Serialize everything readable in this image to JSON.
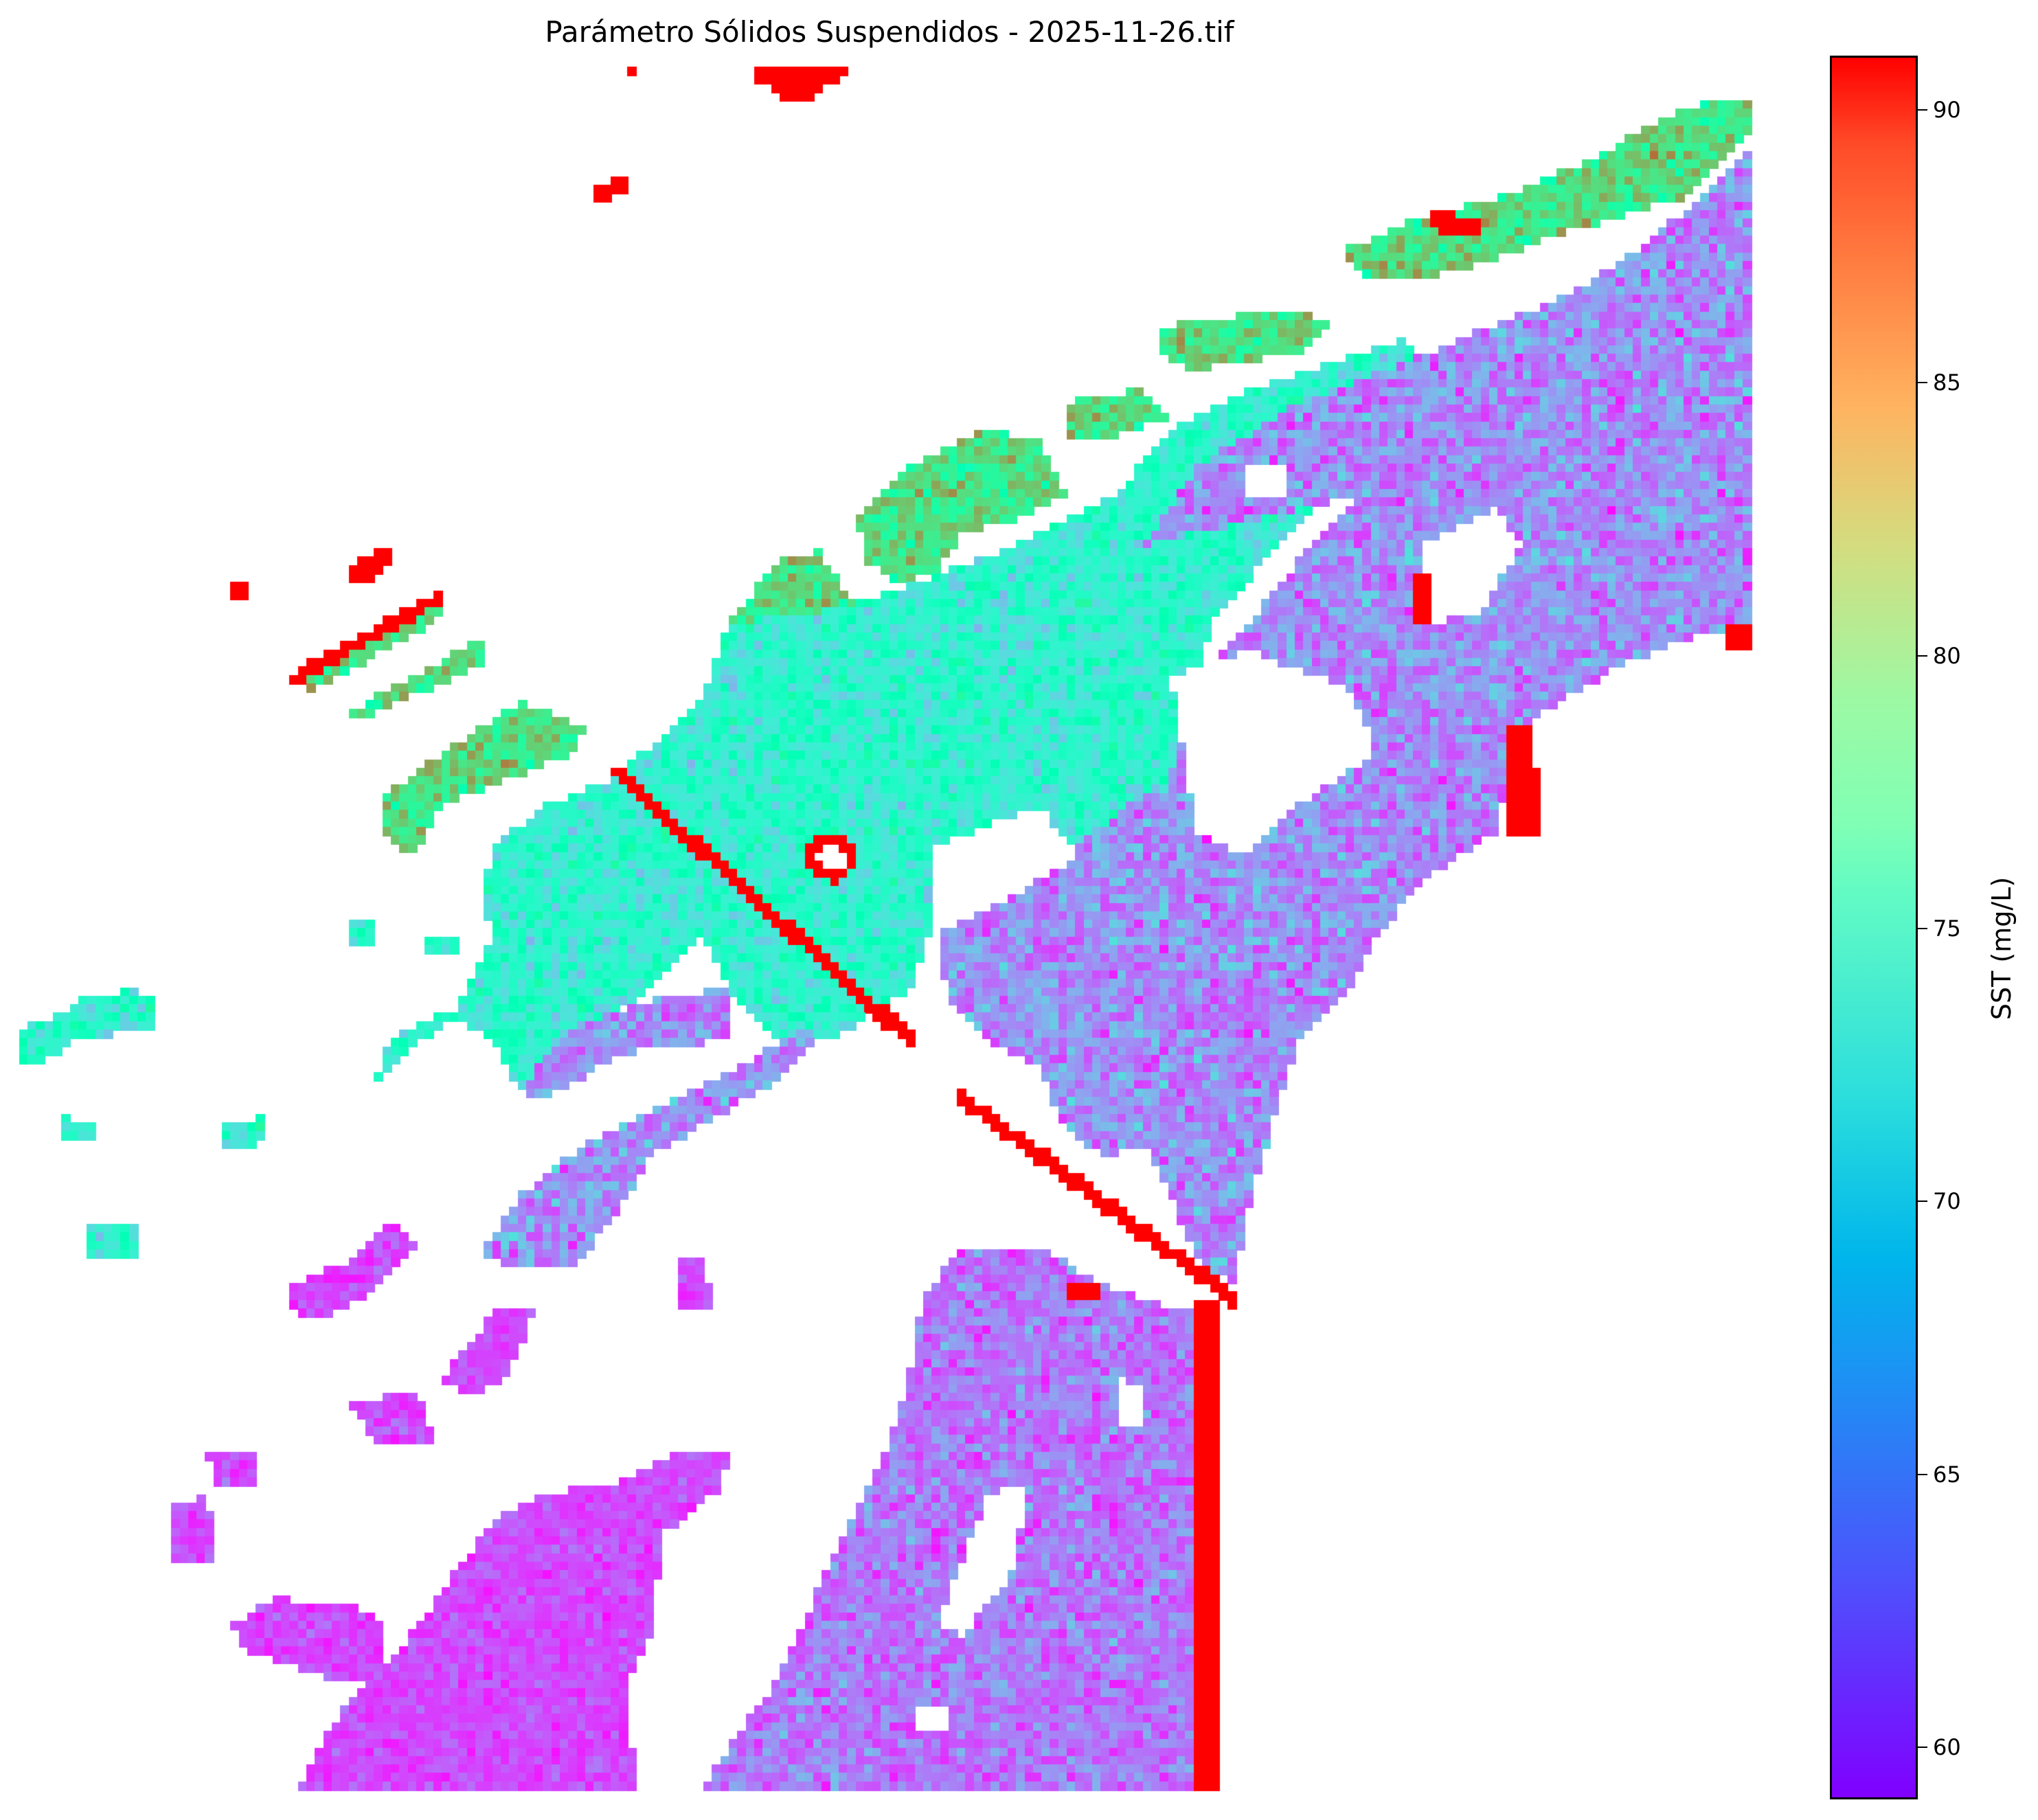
{
  "chart_data": {
    "type": "heatmap",
    "title": "Parámetro Sólidos Suspendidos - 2025-11-26.tif",
    "colorbar": {
      "label": "SST (mg/L)",
      "colormap": "rainbow",
      "range": [
        59.05,
        90.95
      ],
      "ticks": [
        60,
        65,
        70,
        75,
        80,
        85,
        90
      ],
      "tick_labels": [
        "60",
        "65",
        "70",
        "75",
        "80",
        "85",
        "90"
      ]
    },
    "axes_visible": false,
    "nodata_color": "#ffffff"
  }
}
